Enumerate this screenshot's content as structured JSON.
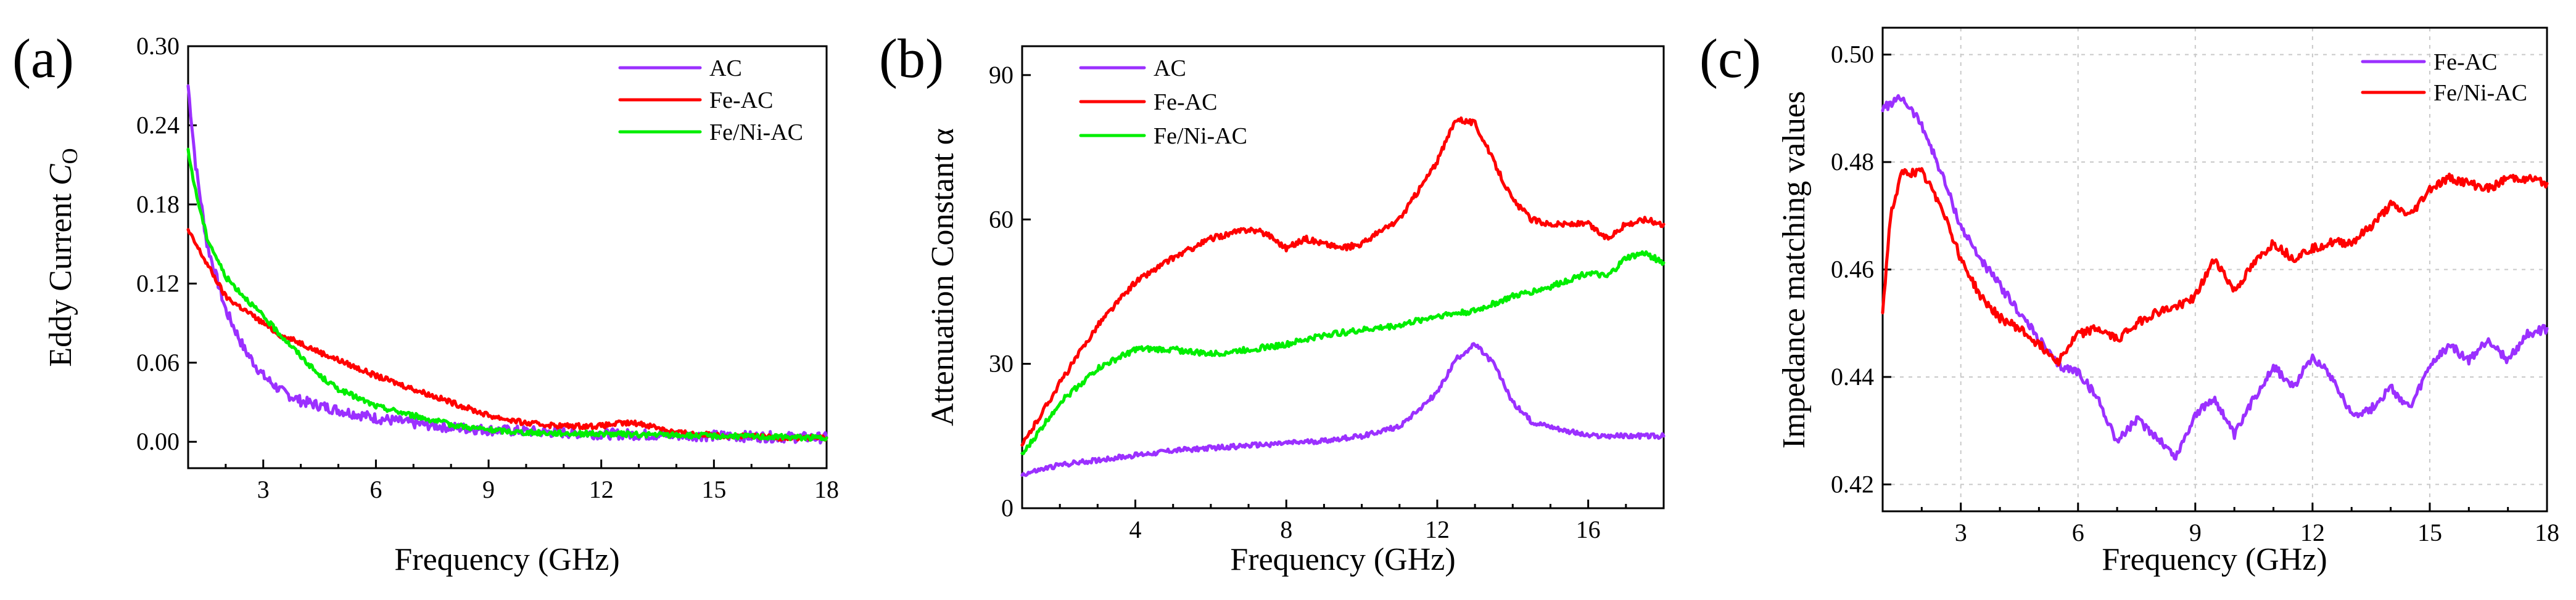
{
  "figure": {
    "colors": {
      "AC": "#9b30ff",
      "Fe-AC": "#ff0000",
      "Fe/Ni-AC": "#00ee00"
    }
  },
  "chart_data": [
    {
      "panel_label": "(a)",
      "type": "line",
      "xlabel": "Frequency (GHz)",
      "ylabel": "Eddy Current ",
      "ylabel_symbol": "C",
      "ylabel_subscript": "O",
      "xlim": [
        1,
        18
      ],
      "ylim": [
        -0.02,
        0.3
      ],
      "xticks": [
        3,
        6,
        9,
        12,
        15,
        18
      ],
      "xtick_labels": [
        "3",
        "6",
        "9",
        "12",
        "15",
        "18"
      ],
      "yticks": [
        0.0,
        0.06,
        0.12,
        0.18,
        0.24,
        0.3
      ],
      "ytick_labels": [
        "0.00",
        "0.06",
        "0.12",
        "0.18",
        "0.24",
        "0.30"
      ],
      "grid": false,
      "legend_position": "top-right",
      "series": [
        {
          "name": "AC",
          "color": "#9b30ff",
          "noise": 0.004,
          "x": [
            1.0,
            1.2,
            1.5,
            2.0,
            2.5,
            3.0,
            3.5,
            4.0,
            5.0,
            6.0,
            7.0,
            8.0,
            9.0,
            10.0,
            12.0,
            14.0,
            16.0,
            18.0
          ],
          "y": [
            0.27,
            0.21,
            0.15,
            0.1,
            0.07,
            0.05,
            0.038,
            0.031,
            0.024,
            0.018,
            0.014,
            0.011,
            0.009,
            0.008,
            0.006,
            0.005,
            0.004,
            0.003
          ]
        },
        {
          "name": "Fe-AC",
          "color": "#ff0000",
          "noise": 0.002,
          "x": [
            1.0,
            1.2,
            1.5,
            2.0,
            2.5,
            3.0,
            3.5,
            4.0,
            4.5,
            5.0,
            6.0,
            7.0,
            8.0,
            9.0,
            10.0,
            11.0,
            12.0,
            12.5,
            13.0,
            13.5,
            14.0,
            15.0,
            16.0,
            17.0,
            18.0
          ],
          "y": [
            0.16,
            0.15,
            0.135,
            0.11,
            0.1,
            0.09,
            0.08,
            0.075,
            0.068,
            0.062,
            0.05,
            0.04,
            0.03,
            0.02,
            0.014,
            0.012,
            0.012,
            0.014,
            0.014,
            0.011,
            0.007,
            0.005,
            0.004,
            0.003,
            0.003
          ]
        },
        {
          "name": "Fe/Ni-AC",
          "color": "#00ee00",
          "noise": 0.002,
          "x": [
            1.0,
            1.2,
            1.5,
            2.0,
            2.5,
            3.0,
            3.5,
            4.0,
            4.5,
            5.0,
            6.0,
            7.0,
            8.0,
            9.0,
            10.0,
            12.0,
            14.0,
            16.0,
            18.0
          ],
          "y": [
            0.22,
            0.19,
            0.155,
            0.125,
            0.11,
            0.095,
            0.08,
            0.065,
            0.05,
            0.04,
            0.027,
            0.02,
            0.013,
            0.009,
            0.007,
            0.006,
            0.005,
            0.004,
            0.003
          ]
        }
      ]
    },
    {
      "panel_label": "(b)",
      "type": "line",
      "xlabel": "Frequency (GHz)",
      "ylabel": "Attenuation Constant α",
      "xlim": [
        1,
        18
      ],
      "ylim": [
        0,
        96
      ],
      "xticks": [
        4,
        8,
        12,
        16
      ],
      "xtick_labels": [
        "4",
        "8",
        "12",
        "16"
      ],
      "yticks": [
        0,
        30,
        60,
        90
      ],
      "ytick_labels": [
        "0",
        "30",
        "60",
        "90"
      ],
      "grid": false,
      "legend_position": "top-left",
      "series": [
        {
          "name": "AC",
          "color": "#9b30ff",
          "noise": 0.5,
          "x": [
            1.0,
            2.0,
            3.0,
            4.0,
            5.0,
            6.0,
            7.0,
            8.0,
            9.0,
            10.0,
            11.0,
            12.0,
            12.5,
            13.0,
            13.5,
            14.0,
            14.5,
            15.0,
            16.0,
            17.0,
            18.0
          ],
          "y": [
            7,
            9,
            10,
            11,
            12,
            12.5,
            13,
            13.5,
            14,
            15,
            17,
            24,
            31,
            34,
            30,
            22,
            18,
            17,
            15,
            15,
            15
          ]
        },
        {
          "name": "Fe-AC",
          "color": "#ff0000",
          "noise": 0.6,
          "x": [
            1.0,
            2.0,
            3.0,
            4.0,
            5.0,
            6.0,
            7.0,
            7.5,
            8.0,
            8.5,
            9.0,
            9.5,
            10.0,
            11.0,
            12.0,
            12.5,
            13.0,
            13.5,
            14.0,
            14.5,
            15.0,
            16.0,
            16.5,
            17.0,
            17.5,
            18.0
          ],
          "y": [
            13,
            26,
            38,
            47,
            52,
            56,
            58,
            57,
            54,
            56,
            55,
            54,
            55,
            60,
            72,
            81,
            80,
            72,
            64,
            60,
            59,
            59,
            56,
            59,
            60,
            59
          ]
        },
        {
          "name": "Fe/Ni-AC",
          "color": "#00ee00",
          "noise": 0.6,
          "x": [
            1.0,
            2.0,
            3.0,
            4.0,
            5.0,
            6.0,
            7.0,
            8.0,
            9.0,
            10.0,
            11.0,
            12.0,
            13.0,
            14.0,
            15.0,
            16.0,
            16.5,
            17.0,
            17.5,
            18.0
          ],
          "y": [
            11,
            22,
            29,
            33,
            33,
            32,
            33,
            34,
            36,
            37,
            38,
            40,
            41,
            44,
            46,
            49,
            48,
            52,
            53,
            51
          ]
        }
      ]
    },
    {
      "panel_label": "(c)",
      "type": "line",
      "xlabel": "Frequency (GHz)",
      "ylabel": "Impedance matching  values",
      "xlim": [
        1,
        18
      ],
      "ylim": [
        0.415,
        0.505
      ],
      "xticks": [
        3,
        6,
        9,
        12,
        15,
        18
      ],
      "xtick_labels": [
        "3",
        "6",
        "9",
        "12",
        "15",
        "18"
      ],
      "yticks": [
        0.42,
        0.44,
        0.46,
        0.48,
        0.5
      ],
      "ytick_labels": [
        "0.42",
        "0.44",
        "0.46",
        "0.48",
        "0.50"
      ],
      "grid": true,
      "legend_position": "top-right",
      "series": [
        {
          "name": "Fe-AC",
          "color": "#9b30ff",
          "noise": 0.0008,
          "x": [
            1.0,
            1.5,
            2.0,
            2.5,
            3.0,
            3.5,
            4.0,
            4.5,
            5.0,
            5.5,
            6.0,
            6.5,
            7.0,
            7.5,
            8.0,
            8.5,
            9.0,
            9.5,
            10.0,
            10.5,
            11.0,
            11.5,
            12.0,
            12.5,
            13.0,
            13.5,
            14.0,
            14.5,
            15.0,
            15.5,
            16.0,
            16.5,
            17.0,
            17.5,
            18.0
          ],
          "y": [
            0.49,
            0.492,
            0.487,
            0.478,
            0.468,
            0.462,
            0.457,
            0.452,
            0.447,
            0.442,
            0.441,
            0.436,
            0.428,
            0.432,
            0.429,
            0.425,
            0.433,
            0.436,
            0.429,
            0.436,
            0.442,
            0.438,
            0.444,
            0.44,
            0.433,
            0.434,
            0.438,
            0.434,
            0.442,
            0.446,
            0.443,
            0.447,
            0.443,
            0.448,
            0.449
          ]
        },
        {
          "name": "Fe/Ni-AC",
          "color": "#ff0000",
          "noise": 0.0008,
          "x": [
            1.0,
            1.2,
            1.5,
            2.0,
            2.5,
            3.0,
            3.5,
            4.0,
            4.5,
            5.0,
            5.5,
            6.0,
            6.5,
            7.0,
            7.5,
            8.0,
            8.5,
            9.0,
            9.5,
            10.0,
            10.5,
            11.0,
            11.5,
            12.0,
            12.5,
            13.0,
            13.5,
            14.0,
            14.5,
            15.0,
            15.5,
            16.0,
            16.5,
            17.0,
            17.5,
            18.0
          ],
          "y": [
            0.452,
            0.47,
            0.478,
            0.478,
            0.472,
            0.462,
            0.455,
            0.451,
            0.449,
            0.446,
            0.443,
            0.448,
            0.449,
            0.447,
            0.45,
            0.452,
            0.453,
            0.455,
            0.462,
            0.456,
            0.461,
            0.465,
            0.462,
            0.464,
            0.465,
            0.465,
            0.468,
            0.472,
            0.47,
            0.475,
            0.477,
            0.476,
            0.475,
            0.477,
            0.477,
            0.476
          ]
        }
      ]
    }
  ]
}
